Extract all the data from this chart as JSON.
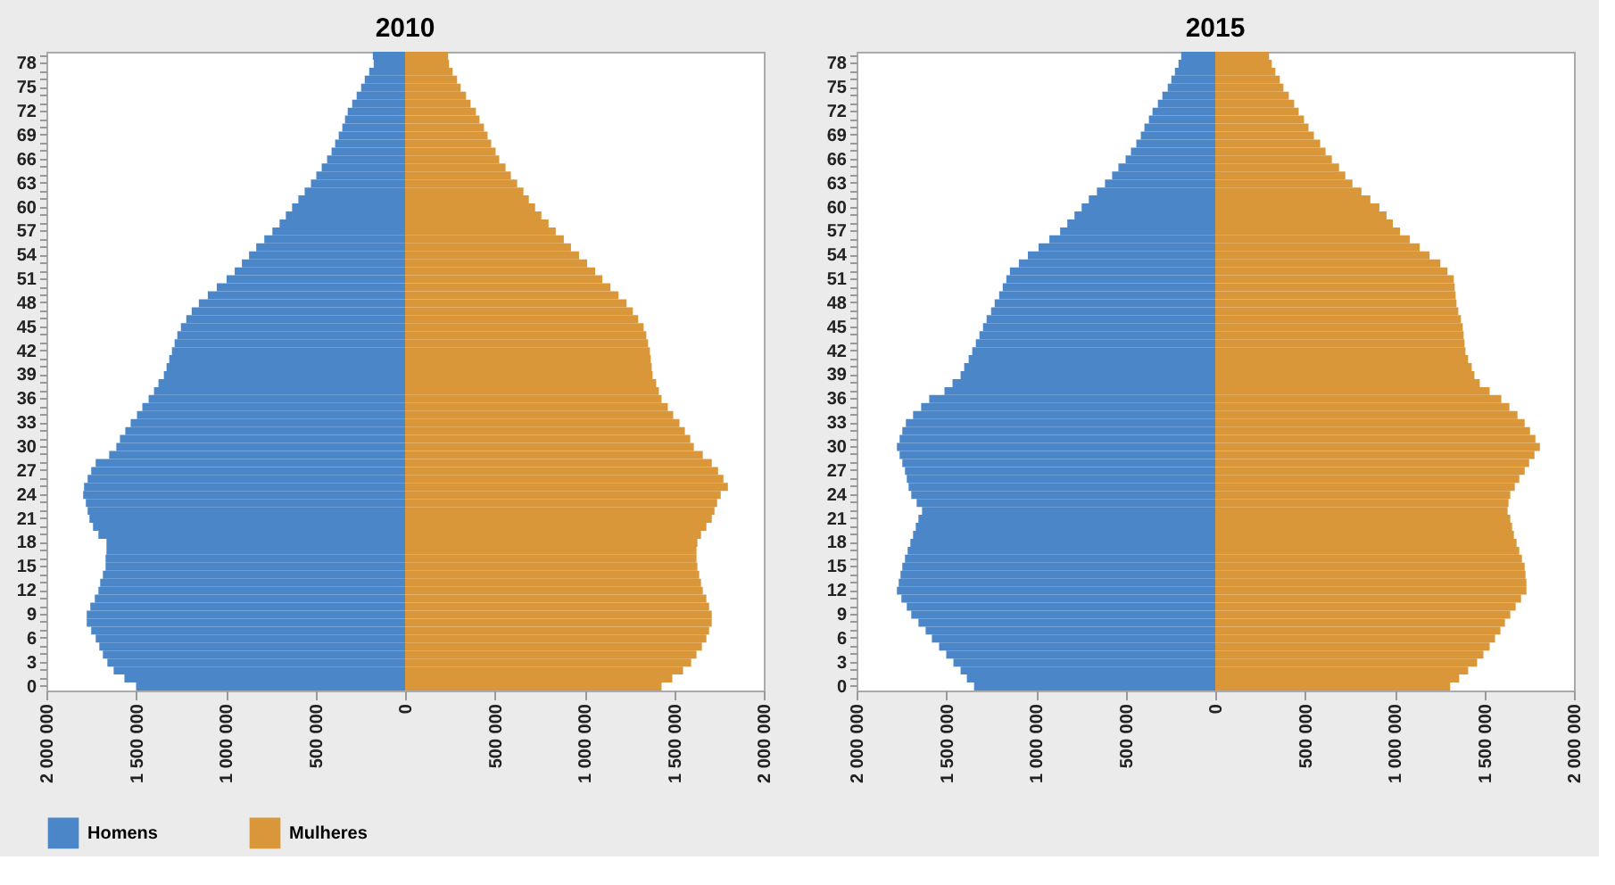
{
  "chart_data": [
    {
      "type": "bar",
      "orientation": "horizontal",
      "stacked": true,
      "title": "2010",
      "legend": "bottom",
      "grid": false,
      "categories": [
        null,
        "78",
        null,
        null,
        "75",
        null,
        null,
        "72",
        null,
        null,
        "69",
        null,
        null,
        "66",
        null,
        null,
        "63",
        null,
        null,
        "60",
        null,
        null,
        "57",
        null,
        null,
        "54",
        null,
        null,
        "51",
        null,
        null,
        "48",
        null,
        null,
        "45",
        null,
        null,
        "42",
        null,
        null,
        "39",
        null,
        null,
        "36",
        null,
        null,
        "33",
        null,
        null,
        "30",
        null,
        null,
        "27",
        null,
        null,
        "24",
        null,
        null,
        "21",
        null,
        null,
        "18",
        null,
        null,
        "15",
        null,
        null,
        "12",
        null,
        null,
        "9",
        null,
        null,
        "6",
        null,
        null,
        "3",
        null,
        null,
        "0"
      ],
      "xlim": [
        -2000000,
        2000000
      ],
      "xticks": [
        {
          "value": -2000000,
          "label": "2 000 000"
        },
        {
          "value": -1500000,
          "label": "1 500 000"
        },
        {
          "value": -1000000,
          "label": "1 000 000"
        },
        {
          "value": -500000,
          "label": "500 000"
        },
        0,
        {
          "value": 500000,
          "label": "500 000"
        },
        {
          "value": 1000000,
          "label": "1 000 000"
        },
        {
          "value": 1500000,
          "label": "1 500 000"
        },
        {
          "value": 2000000,
          "label": "2 000 000"
        }
      ],
      "series": [
        {
          "name": "Homens",
          "color": "#4a86c8",
          "values": [
            -180000,
            -175000,
            -200000,
            -225000,
            -245000,
            -270000,
            -295000,
            -320000,
            -335000,
            -350000,
            -370000,
            -390000,
            -410000,
            -435000,
            -465000,
            -495000,
            -525000,
            -560000,
            -595000,
            -630000,
            -665000,
            -700000,
            -740000,
            -785000,
            -830000,
            -870000,
            -910000,
            -950000,
            -995000,
            -1050000,
            -1100000,
            -1150000,
            -1190000,
            -1220000,
            -1250000,
            -1270000,
            -1285000,
            -1300000,
            -1315000,
            -1330000,
            -1345000,
            -1375000,
            -1400000,
            -1430000,
            -1465000,
            -1495000,
            -1530000,
            -1560000,
            -1590000,
            -1610000,
            -1650000,
            -1725000,
            -1750000,
            -1770000,
            -1790000,
            -1795000,
            -1780000,
            -1770000,
            -1760000,
            -1740000,
            -1710000,
            -1665000,
            -1665000,
            -1670000,
            -1670000,
            -1685000,
            -1700000,
            -1710000,
            -1730000,
            -1755000,
            -1775000,
            -1775000,
            -1750000,
            -1725000,
            -1705000,
            -1685000,
            -1660000,
            -1625000,
            -1565000,
            -1500000
          ]
        },
        {
          "name": "Mulheres",
          "color": "#d9973a",
          "values": [
            240000,
            245000,
            265000,
            290000,
            310000,
            340000,
            365000,
            395000,
            415000,
            440000,
            460000,
            480000,
            505000,
            525000,
            560000,
            590000,
            625000,
            660000,
            690000,
            725000,
            760000,
            800000,
            840000,
            885000,
            925000,
            970000,
            1015000,
            1060000,
            1100000,
            1145000,
            1190000,
            1235000,
            1270000,
            1300000,
            1330000,
            1345000,
            1355000,
            1365000,
            1370000,
            1375000,
            1380000,
            1400000,
            1415000,
            1430000,
            1465000,
            1495000,
            1530000,
            1560000,
            1590000,
            1610000,
            1660000,
            1710000,
            1745000,
            1775000,
            1800000,
            1760000,
            1740000,
            1725000,
            1710000,
            1680000,
            1650000,
            1630000,
            1625000,
            1625000,
            1630000,
            1640000,
            1650000,
            1660000,
            1680000,
            1695000,
            1710000,
            1710000,
            1695000,
            1680000,
            1655000,
            1625000,
            1595000,
            1550000,
            1490000,
            1430000
          ]
        }
      ]
    },
    {
      "type": "bar",
      "orientation": "horizontal",
      "stacked": true,
      "title": "2015",
      "legend": "bottom",
      "grid": false,
      "categories": [
        null,
        "78",
        null,
        null,
        "75",
        null,
        null,
        "72",
        null,
        null,
        "69",
        null,
        null,
        "66",
        null,
        null,
        "63",
        null,
        null,
        "60",
        null,
        null,
        "57",
        null,
        null,
        "54",
        null,
        null,
        "51",
        null,
        null,
        "48",
        null,
        null,
        "45",
        null,
        null,
        "42",
        null,
        null,
        "39",
        null,
        null,
        "36",
        null,
        null,
        "33",
        null,
        null,
        "30",
        null,
        null,
        "27",
        null,
        null,
        "24",
        null,
        null,
        "21",
        null,
        null,
        "18",
        null,
        null,
        "15",
        null,
        null,
        "12",
        null,
        null,
        "9",
        null,
        null,
        "6",
        null,
        null,
        "3",
        null,
        null,
        "0"
      ],
      "xlim": [
        -2000000,
        2000000
      ],
      "xticks": [
        {
          "value": -2000000,
          "label": "2 000 000"
        },
        {
          "value": -1500000,
          "label": "1 500 000"
        },
        {
          "value": -1000000,
          "label": "1 000 000"
        },
        {
          "value": -500000,
          "label": "500 000"
        },
        0,
        {
          "value": 500000,
          "label": "500 000"
        },
        {
          "value": 1000000,
          "label": "1 000 000"
        },
        {
          "value": 1500000,
          "label": "1 500 000"
        },
        {
          "value": 2000000,
          "label": "2 000 000"
        }
      ],
      "series": [
        {
          "name": "Homens",
          "color": "#4a86c8",
          "values": [
            -190000,
            -205000,
            -225000,
            -245000,
            -265000,
            -295000,
            -320000,
            -350000,
            -370000,
            -395000,
            -415000,
            -440000,
            -470000,
            -500000,
            -540000,
            -575000,
            -615000,
            -660000,
            -705000,
            -745000,
            -785000,
            -825000,
            -865000,
            -925000,
            -985000,
            -1045000,
            -1095000,
            -1145000,
            -1165000,
            -1185000,
            -1205000,
            -1230000,
            -1250000,
            -1275000,
            -1295000,
            -1315000,
            -1335000,
            -1355000,
            -1375000,
            -1400000,
            -1420000,
            -1465000,
            -1510000,
            -1595000,
            -1640000,
            -1685000,
            -1725000,
            -1745000,
            -1760000,
            -1775000,
            -1760000,
            -1745000,
            -1730000,
            -1720000,
            -1710000,
            -1695000,
            -1665000,
            -1635000,
            -1655000,
            -1670000,
            -1685000,
            -1700000,
            -1715000,
            -1730000,
            -1745000,
            -1755000,
            -1765000,
            -1775000,
            -1750000,
            -1720000,
            -1695000,
            -1655000,
            -1615000,
            -1580000,
            -1540000,
            -1500000,
            -1460000,
            -1420000,
            -1385000,
            -1345000
          ]
        },
        {
          "name": "Mulheres",
          "color": "#d9973a",
          "values": [
            300000,
            315000,
            335000,
            360000,
            380000,
            410000,
            440000,
            465000,
            495000,
            520000,
            550000,
            585000,
            615000,
            650000,
            690000,
            725000,
            765000,
            815000,
            865000,
            915000,
            955000,
            990000,
            1030000,
            1085000,
            1140000,
            1195000,
            1255000,
            1295000,
            1330000,
            1335000,
            1340000,
            1345000,
            1355000,
            1370000,
            1380000,
            1385000,
            1390000,
            1395000,
            1410000,
            1430000,
            1445000,
            1475000,
            1530000,
            1595000,
            1640000,
            1685000,
            1725000,
            1755000,
            1785000,
            1810000,
            1780000,
            1750000,
            1725000,
            1695000,
            1670000,
            1645000,
            1635000,
            1630000,
            1645000,
            1655000,
            1665000,
            1680000,
            1695000,
            1710000,
            1725000,
            1730000,
            1735000,
            1735000,
            1705000,
            1675000,
            1645000,
            1615000,
            1590000,
            1560000,
            1530000,
            1495000,
            1460000,
            1410000,
            1360000,
            1310000
          ]
        }
      ]
    }
  ]
}
